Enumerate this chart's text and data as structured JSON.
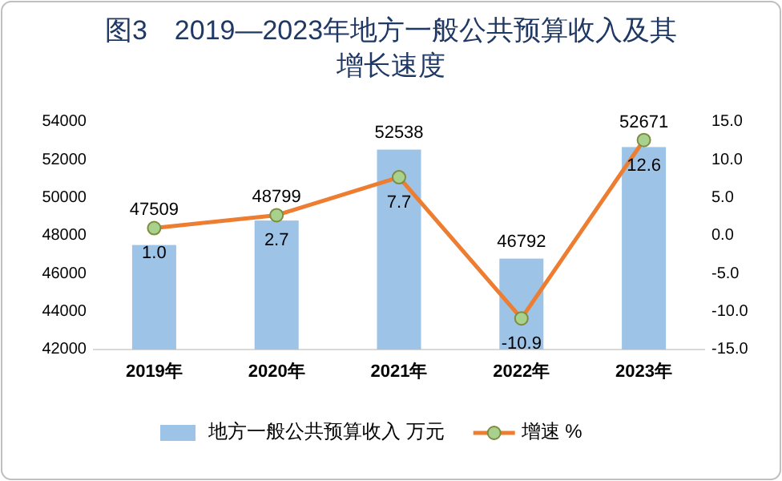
{
  "chart_data": {
    "type": "bar",
    "title": "图3　2019—2023年地方一般公共预算收入及其增长速度",
    "categories": [
      "2019年",
      "2020年",
      "2021年",
      "2022年",
      "2023年"
    ],
    "series": [
      {
        "name": "地方一般公共预算收入 万元",
        "color": "#9dc3e6",
        "values": [
          47509,
          48799,
          52538,
          46792,
          52671
        ],
        "value_labels": [
          "47509",
          "48799",
          "52538",
          "46792",
          "52671"
        ]
      },
      {
        "name": "增速 %",
        "type": "line",
        "axis": "y2",
        "color": "#ed7d31",
        "marker": "circle",
        "values": [
          1.0,
          2.7,
          7.7,
          -10.9,
          12.6
        ],
        "value_labels": [
          "1.0",
          "2.7",
          "7.7",
          "-10.9",
          "12.6"
        ]
      }
    ],
    "ylim": [
      42000,
      54000
    ],
    "yticks": [
      42000,
      44000,
      46000,
      48000,
      50000,
      52000,
      54000
    ],
    "y2lim": [
      -15,
      15
    ],
    "y2ticks": [
      {
        "value": 15,
        "label": "15.0"
      },
      {
        "value": 10,
        "label": "10.0"
      },
      {
        "value": 5,
        "label": "5.0"
      },
      {
        "value": 0,
        "label": "0.0"
      },
      {
        "value": -5,
        "label": "-5.0"
      },
      {
        "value": -10,
        "label": "-10.0"
      },
      {
        "value": -15,
        "label": "-15.0"
      }
    ],
    "grid": false,
    "legend": "bottom"
  }
}
